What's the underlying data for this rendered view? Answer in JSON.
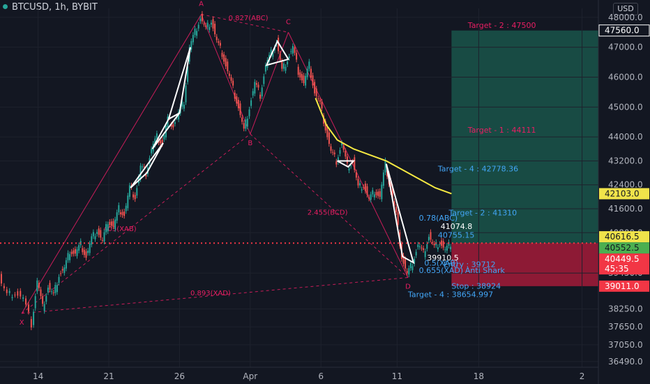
{
  "header": {
    "symbol": "BTCUSD, 1h, BYBIT",
    "currency": "USD"
  },
  "chart_data": {
    "type": "candlestick",
    "title": "BTCUSD, 1h, BYBIT",
    "x_ticks": [
      "14",
      "21",
      "26",
      "Apr",
      "6",
      "11",
      "18",
      "2"
    ],
    "y_ticks": [
      48000.0,
      47000.0,
      46000.0,
      45000.0,
      44000.0,
      43200.0,
      42400.0,
      41600.0,
      40800.0,
      39450.0,
      38250.0,
      37650.0,
      37050.0,
      36490.0
    ],
    "ylim": [
      36300,
      48300
    ],
    "price_scale_labels": [
      {
        "value": "47560.0",
        "color": "#ffffff",
        "bg": "#131722"
      },
      {
        "value": "42103.0",
        "color": "#131722",
        "bg": "#f0e34a"
      },
      {
        "value": "40616.5",
        "color": "#131722",
        "bg": "#f0e34a"
      },
      {
        "value": "40552.5",
        "color": "#131722",
        "bg": "#4caf50"
      },
      {
        "value": "40449.5",
        "color": "#ffffff",
        "bg": "#f23645"
      },
      {
        "value": "45:35",
        "color": "#ffffff",
        "bg": "#f23645"
      },
      {
        "value": "39011.0",
        "color": "#ffffff",
        "bg": "#f23645"
      }
    ],
    "colors": {
      "up": "#26a69a",
      "down": "#ef5350",
      "pattern": "#ffffff",
      "harmonic": "#e91e63",
      "ema": "#f5e942",
      "target_zone": "#1b5e50",
      "stop_zone": "#b71c3c"
    },
    "price_path": [
      {
        "t": 0,
        "p": 39300
      },
      {
        "t": 3,
        "p": 38700
      },
      {
        "t": 6,
        "p": 38800
      },
      {
        "t": 9,
        "p": 38600
      },
      {
        "t": 12,
        "p": 37750
      },
      {
        "t": 14,
        "p": 39200
      },
      {
        "t": 16,
        "p": 38300
      },
      {
        "t": 18,
        "p": 39000
      },
      {
        "t": 20,
        "p": 38700
      },
      {
        "t": 22,
        "p": 39400
      },
      {
        "t": 24,
        "p": 39600
      },
      {
        "t": 26,
        "p": 40200
      },
      {
        "t": 28,
        "p": 40100
      },
      {
        "t": 30,
        "p": 40400
      },
      {
        "t": 32,
        "p": 40000
      },
      {
        "t": 34,
        "p": 40600
      },
      {
        "t": 36,
        "p": 40900
      },
      {
        "t": 38,
        "p": 40500
      },
      {
        "t": 40,
        "p": 41200
      },
      {
        "t": 42,
        "p": 41000
      },
      {
        "t": 44,
        "p": 41600
      },
      {
        "t": 46,
        "p": 41400
      },
      {
        "t": 48,
        "p": 42300
      },
      {
        "t": 50,
        "p": 42000
      },
      {
        "t": 52,
        "p": 43000
      },
      {
        "t": 54,
        "p": 42800
      },
      {
        "t": 56,
        "p": 43600
      },
      {
        "t": 58,
        "p": 44000
      },
      {
        "t": 60,
        "p": 43800
      },
      {
        "t": 62,
        "p": 44600
      },
      {
        "t": 64,
        "p": 44400
      },
      {
        "t": 66,
        "p": 44800
      },
      {
        "t": 68,
        "p": 45200
      },
      {
        "t": 70,
        "p": 47000
      },
      {
        "t": 72,
        "p": 47500
      },
      {
        "t": 74,
        "p": 48000
      },
      {
        "t": 76,
        "p": 47600
      },
      {
        "t": 78,
        "p": 47900
      },
      {
        "t": 80,
        "p": 47200
      },
      {
        "t": 82,
        "p": 46800
      },
      {
        "t": 84,
        "p": 46200
      },
      {
        "t": 86,
        "p": 45600
      },
      {
        "t": 88,
        "p": 45000
      },
      {
        "t": 90,
        "p": 44200
      },
      {
        "t": 92,
        "p": 45000
      },
      {
        "t": 94,
        "p": 45800
      },
      {
        "t": 96,
        "p": 45400
      },
      {
        "t": 98,
        "p": 46400
      },
      {
        "t": 100,
        "p": 46800
      },
      {
        "t": 102,
        "p": 47200
      },
      {
        "t": 104,
        "p": 46200
      },
      {
        "t": 106,
        "p": 46600
      },
      {
        "t": 108,
        "p": 47000
      },
      {
        "t": 110,
        "p": 46200
      },
      {
        "t": 112,
        "p": 45800
      },
      {
        "t": 114,
        "p": 46400
      },
      {
        "t": 116,
        "p": 45500
      },
      {
        "t": 118,
        "p": 45100
      },
      {
        "t": 120,
        "p": 44300
      },
      {
        "t": 122,
        "p": 43500
      },
      {
        "t": 124,
        "p": 43200
      },
      {
        "t": 126,
        "p": 43800
      },
      {
        "t": 128,
        "p": 43000
      },
      {
        "t": 130,
        "p": 43200
      },
      {
        "t": 132,
        "p": 42300
      },
      {
        "t": 134,
        "p": 42400
      },
      {
        "t": 136,
        "p": 41900
      },
      {
        "t": 138,
        "p": 42200
      },
      {
        "t": 140,
        "p": 42000
      },
      {
        "t": 142,
        "p": 43100
      },
      {
        "t": 144,
        "p": 42200
      },
      {
        "t": 146,
        "p": 41400
      },
      {
        "t": 148,
        "p": 40000
      },
      {
        "t": 150,
        "p": 39400
      },
      {
        "t": 152,
        "p": 39800
      },
      {
        "t": 154,
        "p": 40400
      },
      {
        "t": 156,
        "p": 40100
      },
      {
        "t": 158,
        "p": 40700
      },
      {
        "t": 160,
        "p": 40300
      },
      {
        "t": 162,
        "p": 40500
      },
      {
        "t": 164,
        "p": 40200
      },
      {
        "t": 166,
        "p": 40449.5
      }
    ],
    "ema_path": [
      {
        "t": 116,
        "p": 45300
      },
      {
        "t": 120,
        "p": 44400
      },
      {
        "t": 124,
        "p": 43900
      },
      {
        "t": 130,
        "p": 43600
      },
      {
        "t": 136,
        "p": 43400
      },
      {
        "t": 142,
        "p": 43200
      },
      {
        "t": 148,
        "p": 42900
      },
      {
        "t": 154,
        "p": 42600
      },
      {
        "t": 160,
        "p": 42300
      },
      {
        "t": 166,
        "p": 42103
      }
    ],
    "harmonic_points": [
      {
        "label": "X",
        "t": 8,
        "p": 38100
      },
      {
        "label": "A",
        "t": 74,
        "p": 48100
      },
      {
        "label": "B",
        "t": 92,
        "p": 44100
      },
      {
        "label": "C",
        "t": 106,
        "p": 47500
      },
      {
        "label": "D",
        "t": 150,
        "p": 39300
      }
    ],
    "harmonic_labels": [
      {
        "text": "0.827(ABC)",
        "t": 84,
        "p": 47900
      },
      {
        "text": "2.455(BCD)",
        "t": 113,
        "p": 41400
      },
      {
        "text": "0.893(XAD)",
        "t": 70,
        "p": 38700
      },
      {
        "text": "405(XAB)",
        "t": 38,
        "p": 40850
      }
    ],
    "annotations": [
      {
        "text": "Target - 2 : 47500",
        "t": 172,
        "p": 47650,
        "color": "#e91e63"
      },
      {
        "text": "Target - 1 : 44111",
        "t": 172,
        "p": 44150,
        "color": "#e91e63"
      },
      {
        "text": "Target - 4 : 42778.36",
        "t": 161,
        "p": 42850,
        "color": "#42a5f5"
      },
      {
        "text": "Target - 2 : 41310",
        "t": 165,
        "p": 41380,
        "color": "#42a5f5"
      },
      {
        "text": "41074.8",
        "t": 162,
        "p": 40920,
        "color": "#ffffff"
      },
      {
        "text": "40755.15",
        "t": 161,
        "p": 40630,
        "color": "#42a5f5"
      },
      {
        "text": "39910.5",
        "t": 157,
        "p": 39870,
        "color": "#ffffff"
      },
      {
        "text": "Entry : 39712",
        "t": 163,
        "p": 39650,
        "color": "#42a5f5"
      },
      {
        "text": "Anti Shark",
        "t": 171,
        "p": 39450,
        "color": "#42a5f5"
      },
      {
        "text": "Stop : 38924",
        "t": 166,
        "p": 38930,
        "color": "#42a5f5"
      },
      {
        "text": "Target - 4 : 38654.997",
        "t": 150,
        "p": 38650,
        "color": "#42a5f5"
      },
      {
        "text": "0.78(ABC)",
        "t": 154,
        "p": 41200,
        "color": "#42a5f5"
      },
      {
        "text": "0.5(XAB)",
        "t": 156,
        "p": 39700,
        "color": "#42a5f5"
      },
      {
        "text": "0.655(XAD)",
        "t": 154,
        "p": 39450,
        "color": "#42a5f5"
      }
    ],
    "last_price": 40449.5
  }
}
